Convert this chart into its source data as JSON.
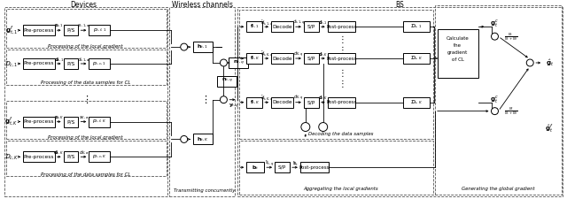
{
  "fig_w": 6.4,
  "fig_h": 2.25,
  "dpi": 100,
  "sections": {
    "devices_label": "Devices",
    "wireless_label": "Wireless channels",
    "bs_label": "BS"
  },
  "captions": {
    "proc_gradient": "Processing of the local gradient",
    "proc_data": "Processing of the data samples for CL",
    "transmit": "Transmitting concurrently",
    "decode_data": "Decoding the data samples",
    "agg_gradient": "Aggregating the local gradients",
    "gen_gradient": "Generating the global gradient"
  },
  "colors": {
    "box_face": "white",
    "box_edge": "black",
    "dash_edge": "#555555",
    "arrow": "black"
  }
}
